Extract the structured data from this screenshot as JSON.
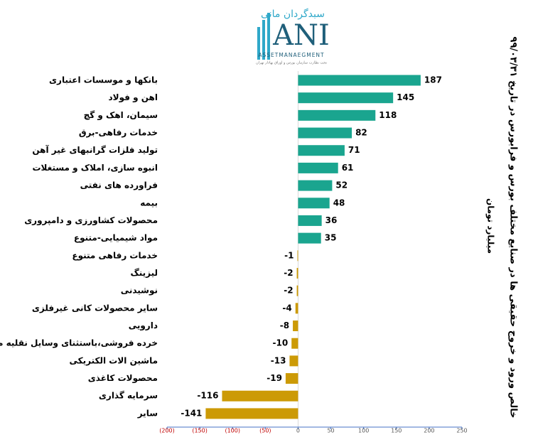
{
  "logo": {
    "name": "سبدگردان مانی",
    "mark": "ANI",
    "tagline": "ASSETMANAEGMENT",
    "note": "تحت نظارت سازمان بورس و اوراق بهادار تهران"
  },
  "chart_data": {
    "type": "bar",
    "orientation": "horizontal",
    "title": "خالص ورود و خروج حقیقی ها در صنایع مختلف بورس و فرابورس در تاریخ ۹۹/۰۳/۳۱",
    "axis_label": "میلیارد تومان",
    "categories": [
      "بانکها و موسسات اعتباری",
      "اهن و فولاد",
      "سیمان، اهک و گچ",
      "خدمات رفاهی-برق",
      "تولید فلزات گرانبهای غیر آهن",
      "انبوه سازی، املاک و مستغلات",
      "فراورده های نفتی",
      "بیمه",
      "محصولات کشاورزی و دامپروری",
      "مواد شیمیایی-متنوع",
      "خدمات رفاهی متنوع",
      "لیزینگ",
      "نوشیدنی",
      "سایر محصولات کانی غیرفلزی",
      "دارویی",
      "خرده فروشی،باستثنای وسایل نقلیه موتوری",
      "ماشین الات الکتریکی",
      "محصولات کاغذی",
      "سرمایه گذاری",
      "سایر"
    ],
    "values": [
      187,
      145,
      118,
      82,
      71,
      61,
      52,
      48,
      36,
      35,
      -1,
      -2,
      -2,
      -4,
      -8,
      -10,
      -13,
      -19,
      -116,
      -141
    ],
    "positive_color": "#1aa58f",
    "negative_color": "#cc9a06",
    "xlim": [
      -200,
      250
    ],
    "xticks": [
      {
        "value": -200,
        "label": "(200)"
      },
      {
        "value": -150,
        "label": "(150)"
      },
      {
        "value": -100,
        "label": "(100)"
      },
      {
        "value": -50,
        "label": "(50)"
      },
      0,
      50,
      100,
      150,
      200,
      250
    ],
    "negative_tick_color": "#c00000",
    "tick_color": "#595959"
  }
}
